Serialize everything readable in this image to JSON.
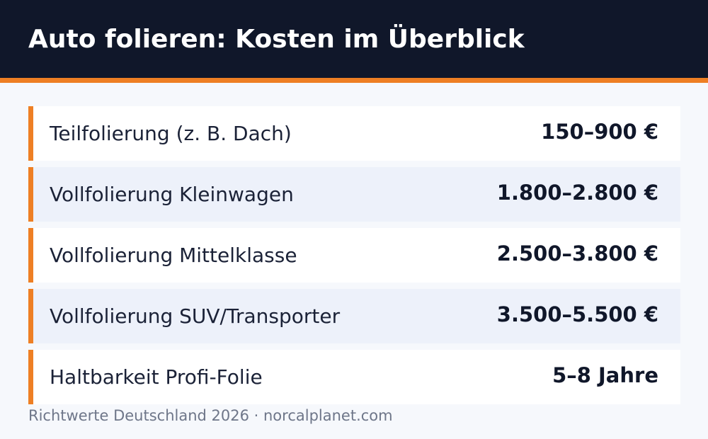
{
  "header": {
    "title": "Auto folieren: Kosten im Überblick"
  },
  "rows": [
    {
      "label": "Teilfolierung (z. B. Dach)",
      "value": "150–900 €"
    },
    {
      "label": "Vollfolierung Kleinwagen",
      "value": "1.800–2.800 €"
    },
    {
      "label": "Vollfolierung Mittelklasse",
      "value": "2.500–3.800 €"
    },
    {
      "label": "Vollfolierung SUV/Transporter",
      "value": "3.500–5.500 €"
    },
    {
      "label": "Haltbarkeit Profi-Folie",
      "value": "5–8 Jahre"
    }
  ],
  "footer": {
    "source": "Richtwerte Deutschland 2026 · norcalplanet.com"
  },
  "colors": {
    "header_background": "#10172a",
    "accent": "#ee7f24",
    "row_background": "#ffffff",
    "row_alt_background": "#edf1fa",
    "page_background": "#f6f8fc"
  }
}
